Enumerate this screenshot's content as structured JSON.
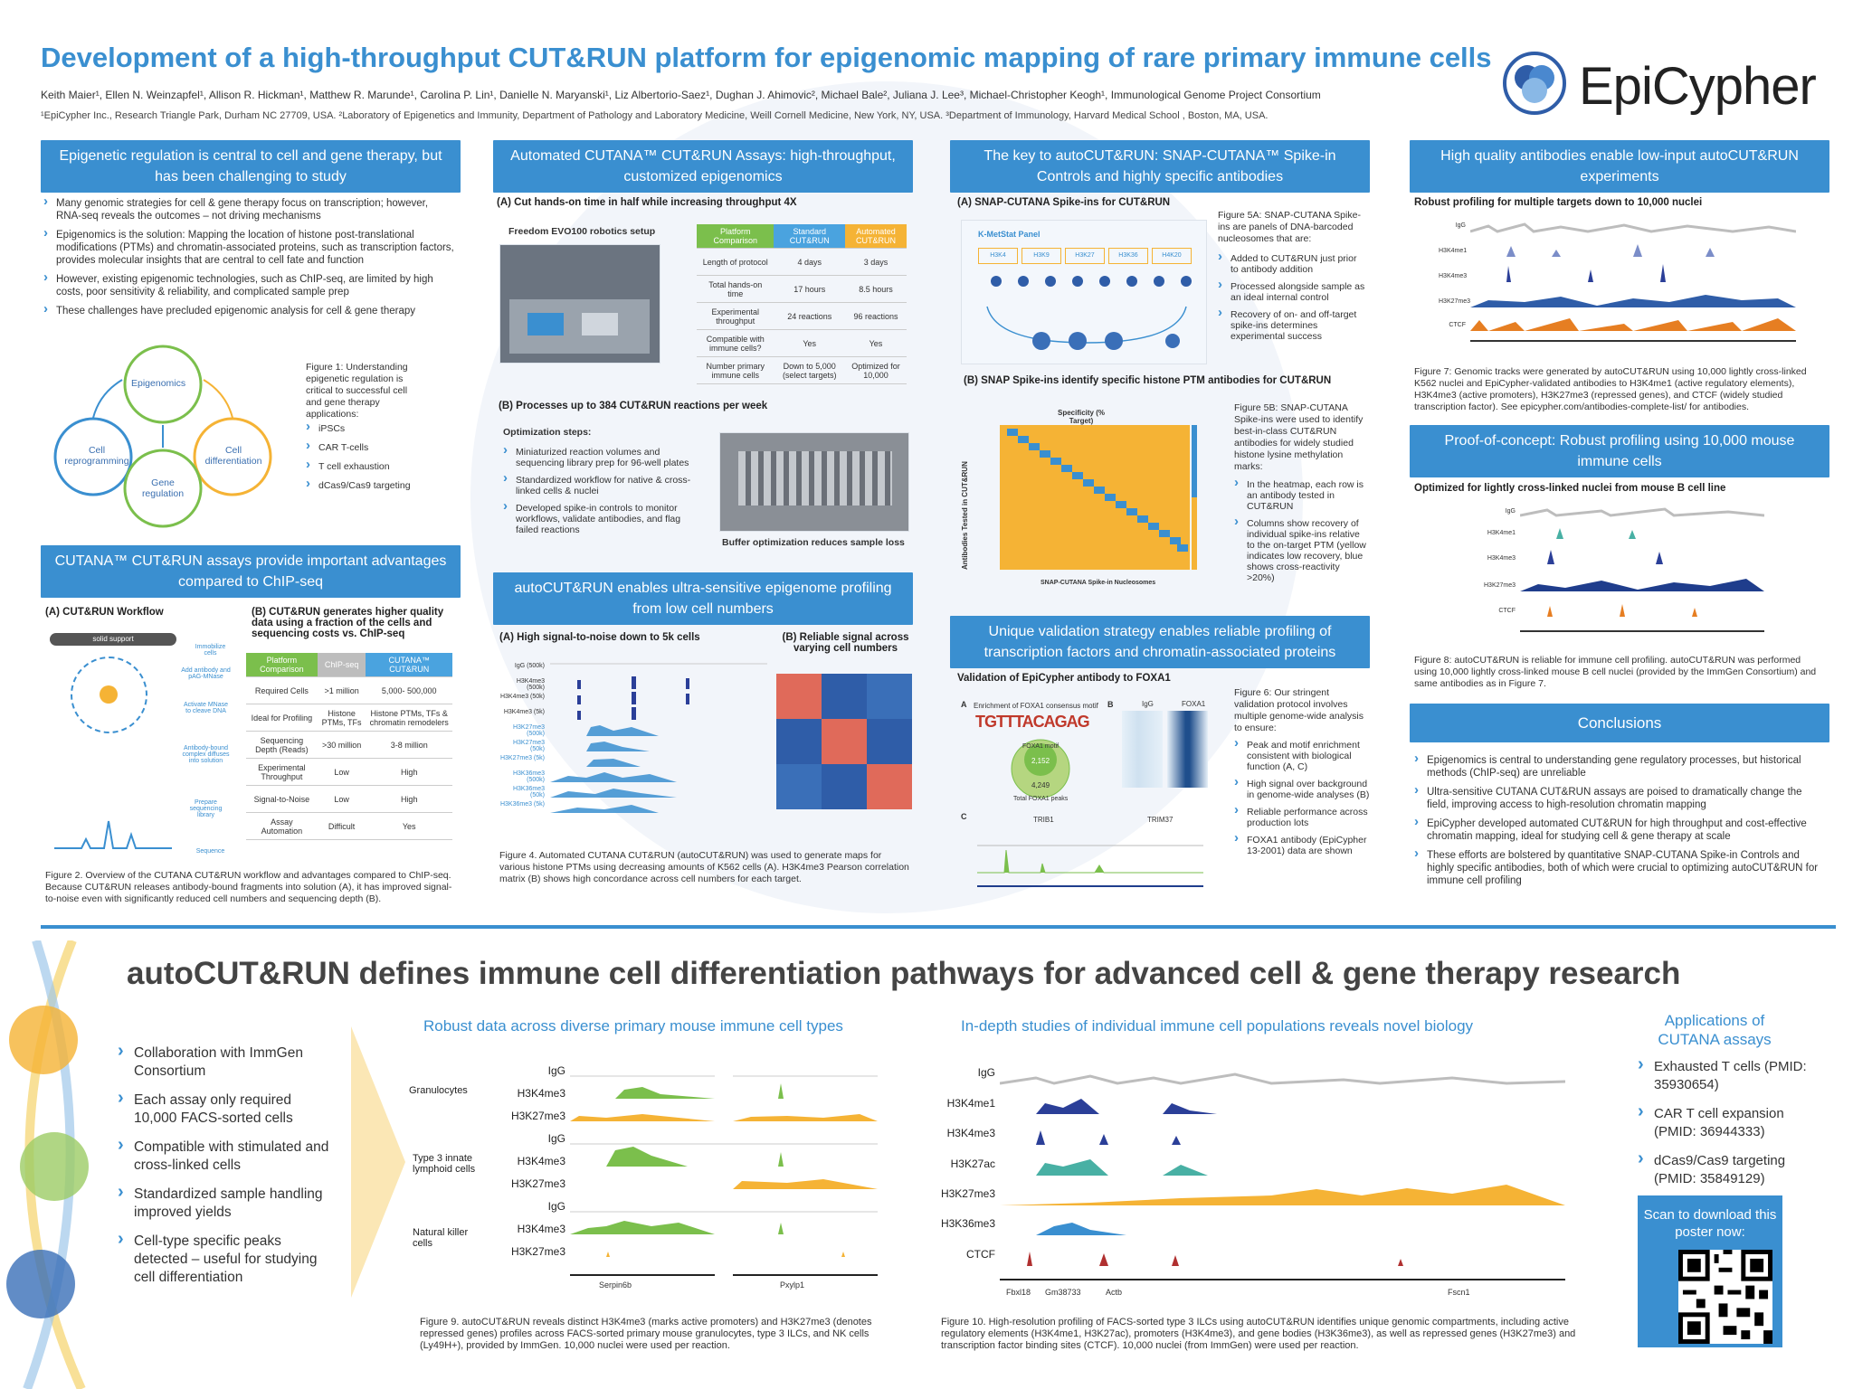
{
  "title": "Development of a high-throughput CUT&RUN platform for epigenomic mapping of rare primary immune cells",
  "authors": "Keith Maier¹, Ellen N. Weinzapfel¹, Allison R. Hickman¹, Matthew R. Marunde¹, Carolina P. Lin¹, Danielle N. Maryanski¹, Liz Albertorio-Saez¹, Dughan J. Ahimovic², Michael Bale², Juliana J. Lee³, Michael-Christopher Keogh¹, Immunological Genome Project Consortium",
  "affiliations": "¹EpiCypher Inc., Research Triangle Park, Durham NC 27709, USA.  ²Laboratory of Epigenetics and Immunity, Department of Pathology and Laboratory Medicine, Weill Cornell Medicine, New York, NY, USA. ³Department of Immunology, Harvard Medical School , Boston, MA, USA.",
  "logo": "EpiCypher",
  "col1": {
    "h1": "Epigenetic regulation is central to cell and gene therapy, but has been challenging to study",
    "bullets": [
      "Many genomic strategies for cell & gene therapy focus on transcription; however, RNA-seq reveals the outcomes – not driving mechanisms",
      "Epigenomics is the solution: Mapping the location of histone post-translational modifications (PTMs) and chromatin-associated proteins, such as transcription factors, provides molecular insights that are central to cell fate and function",
      "However, existing epigenomic technologies, such as ChIP-seq, are limited by high costs, poor sensitivity & reliability, and complicated sample prep",
      "These challenges have precluded epigenomic analysis for cell & gene therapy"
    ],
    "cycle": [
      "Epigenomics",
      "Cell reprogramming",
      "Cell differentiation",
      "Gene regulation"
    ],
    "fig1_caption": "Figure 1: Understanding epigenetic regulation is critical to successful cell and gene therapy applications:",
    "fig1_items": [
      "iPSCs",
      "CAR T-cells",
      "T cell exhaustion",
      "dCas9/Cas9 targeting"
    ],
    "h2": "CUTANA™ CUT&RUN assays provide important advantages compared to ChIP-seq",
    "subA": "(A) CUT&RUN Workflow",
    "subB": "(B) CUT&RUN generates higher quality data using a fraction of the cells and sequencing costs vs. ChIP-seq",
    "workflow": [
      "solid support",
      "Immobilize cells",
      "Add antibody and pAG-MNase",
      "Activate MNase to cleave DNA",
      "Antibody-bound complex diffuses into solution",
      "Prepare sequencing library",
      "Sequence"
    ],
    "table_head": [
      "Platform Comparison",
      "ChIP-seq",
      "CUTANA™ CUT&RUN"
    ],
    "table_rows": [
      [
        "Required Cells",
        ">1 million",
        "5,000- 500,000"
      ],
      [
        "Ideal for Profiling",
        "Histone PTMs, TFs",
        "Histone PTMs, TFs & chromatin remodelers"
      ],
      [
        "Sequencing Depth (Reads)",
        ">30 million",
        "3-8 million"
      ],
      [
        "Experimental Throughput",
        "Low",
        "High"
      ],
      [
        "Signal-to-Noise",
        "Low",
        "High"
      ],
      [
        "Assay Automation",
        "Difficult",
        "Yes"
      ]
    ],
    "fig2_caption": "Figure 2. Overview of the CUTANA CUT&RUN workflow and advantages compared to ChIP-seq. Because CUT&RUN releases antibody-bound fragments into solution (A), it has improved signal-to-noise even with significantly reduced cell numbers and sequencing depth (B)."
  },
  "col2": {
    "h1": "Automated CUTANA™ CUT&RUN Assays: high-throughput, customized epigenomics",
    "subA": "(A) Cut hands-on time in half while increasing throughput 4X",
    "robot_label": "Freedom EVO100 robotics setup",
    "table_head": [
      "Platform Comparison",
      "Standard CUT&RUN",
      "Automated CUT&RUN"
    ],
    "table_rows": [
      [
        "Length of protocol",
        "4 days",
        "3 days"
      ],
      [
        "Total hands-on time",
        "17 hours",
        "8.5 hours"
      ],
      [
        "Experimental throughput",
        "24 reactions",
        "96 reactions"
      ],
      [
        "Compatible with immune cells?",
        "Yes",
        "Yes"
      ],
      [
        "Number primary immune cells",
        "Down to 5,000 (select targets)",
        "Optimized for 10,000"
      ]
    ],
    "subB": "(B) Processes up to 384 CUT&RUN reactions per week",
    "opt_title": "Optimization steps:",
    "opt_items": [
      "Miniaturized reaction volumes and sequencing library prep for 96-well plates",
      "Standardized workflow for native & cross-linked cells & nuclei",
      "Developed spike-in controls to monitor workflows, validate antibodies, and flag failed reactions"
    ],
    "plate_label": "Buffer optimization reduces sample loss",
    "h2": "autoCUT&RUN enables ultra-sensitive epigenome profiling from low cell numbers",
    "sub2A": "(A) High signal-to-noise down to 5k cells",
    "sub2B": "(B) Reliable signal across varying cell numbers",
    "tracks": [
      "IgG (500k)",
      "H3K4me3 (500k)",
      "H3K4me3 (50k)",
      "H3K4me3 (5k)",
      "H3K27me3 (500k)",
      "H3K27me3 (50k)",
      "H3K27me3 (5k)",
      "H3K36me3 (500k)",
      "H3K36me3 (50k)",
      "H3K36me3 (5k)"
    ],
    "fig4_caption": "Figure 4. Automated CUTANA CUT&RUN (autoCUT&RUN) was used to generate maps for various histone PTMs using decreasing amounts of K562 cells (A). H3K4me3 Pearson correlation matrix (B) shows high concordance across cell numbers for each target."
  },
  "col3": {
    "h1": "The key to autoCUT&RUN: SNAP-CUTANA™ Spike-in Controls and highly specific antibodies",
    "subA": "(A) SNAP-CUTANA Spike-ins for CUT&RUN",
    "panel_title": "K-MetStat Panel",
    "panel": [
      "H3K4",
      "H3K9",
      "H3K27",
      "H3K36",
      "H4K20"
    ],
    "fig5a_caption": "Figure 5A: SNAP-CUTANA Spike-ins are panels of DNA-barcoded nucleosomes that are:",
    "fig5a_items": [
      "Added to CUT&RUN just prior to antibody addition",
      "Processed alongside sample as an ideal internal control",
      "Recovery of on- and off-target spike-ins determines experimental success"
    ],
    "subB": "(B) SNAP Spike-ins identify specific histone PTM antibodies for CUT&RUN",
    "heat_title": "Specificity (% Target)",
    "heat_xlabel": "SNAP-CUTANA Spike-in Nucleosomes",
    "heat_ylabel": "Antibodies Tested in CUT&RUN",
    "fig5b_caption": "Figure 5B: SNAP-CUTANA Spike-ins were used to identify best-in-class CUT&RUN antibodies for widely studied histone lysine methylation marks:",
    "fig5b_items": [
      "In the heatmap, each row is an antibody tested in CUT&RUN",
      "Columns show recovery of individual spike-ins relative to the on-target PTM (yellow indicates low recovery, blue shows cross-reactivity >20%)"
    ],
    "h2": "Unique validation strategy enables reliable profiling of transcription factors and chromatin-associated proteins",
    "sub2": "Validation of EpiCypher antibody to FOXA1",
    "motif_title": "Enrichment of FOXA1 consensus motif",
    "venn": [
      "FOXA1 motif",
      "2,152",
      "4,249",
      "Total FOXA1 peaks"
    ],
    "heat_labels": [
      "IgG",
      "FOXA1"
    ],
    "genes": [
      "TRIB1",
      "TRIM37"
    ],
    "fig6_caption": "Figure 6: Our stringent validation protocol involves multiple genome-wide analysis to ensure:",
    "fig6_items": [
      "Peak and motif enrichment consistent with biological function (A, C)",
      "High signal over background in genome-wide analyses (B)",
      "Reliable performance across production lots",
      "FOXA1 antibody (EpiCypher 13-2001) data are shown"
    ]
  },
  "col4": {
    "h1": "High quality antibodies enable low-input autoCUT&RUN experiments",
    "sub1": "Robust profiling for multiple targets down to 10,000 nuclei",
    "tracks": [
      "IgG",
      "H3K4me1",
      "H3K4me3",
      "H3K27me3",
      "CTCF"
    ],
    "fig7_caption": "Figure 7: Genomic tracks were generated by autoCUT&RUN using 10,000 lightly cross-linked K562 nuclei and EpiCypher-validated antibodies to H3K4me1 (active regulatory elements), H3K4me3 (active promoters), H3K27me3 (repressed genes), and CTCF (widely studied transcription factor). See epicypher.com/antibodies-complete-list/ for antibodies.",
    "h2": "Proof-of-concept: Robust profiling using 10,000 mouse immune cells",
    "sub2": "Optimized for lightly cross-linked nuclei from mouse B cell line",
    "fig8_caption": "Figure 8: autoCUT&RUN is reliable for immune cell profiling. autoCUT&RUN was performed using 10,000 lightly cross-linked mouse B cell nuclei (provided by the ImmGen Consortium) and same antibodies as in Figure 7.",
    "h3": "Conclusions",
    "conclusions": [
      "Epigenomics is central to understanding gene regulatory processes, but historical methods (ChIP-seq) are unreliable",
      "Ultra-sensitive CUTANA CUT&RUN assays are poised to dramatically change the field, improving access to high-resolution chromatin mapping",
      "EpiCypher developed automated CUT&RUN for high throughput and cost-effective chromatin mapping, ideal for studying cell & gene therapy at scale",
      "These efforts are bolstered by quantitative SNAP-CUTANA Spike-in Controls and highly specific antibodies, both of which were crucial to optimizing autoCUT&RUN for immune cell profiling"
    ]
  },
  "bottom": {
    "title": "autoCUT&RUN defines immune cell differentiation pathways for advanced cell & gene therapy research",
    "bullets": [
      "Collaboration with ImmGen Consortium",
      "Each assay only required 10,000 FACS-sorted cells",
      "Compatible with stimulated and cross-linked cells",
      "Standardized sample handling improved yields",
      "Cell-type specific peaks detected – useful for studying cell differentiation"
    ],
    "sub9": "Robust data across diverse primary mouse immune cell types",
    "cell_types": [
      "Granulocytes",
      "Type 3 innate lymphoid cells",
      "Natural killer cells"
    ],
    "marks9": [
      "IgG",
      "H3K4me3",
      "H3K27me3"
    ],
    "genes9": [
      "Serpin6b",
      "Pxylp1"
    ],
    "fig9_caption": "Figure 9. autoCUT&RUN reveals distinct H3K4me3 (marks active promoters) and H3K27me3 (denotes repressed genes) profiles across FACS-sorted primary mouse granulocytes, type 3 ILCs, and NK cells (Ly49H+), provided by ImmGen. 10,000 nuclei were used per reaction.",
    "sub10": "In-depth studies of individual immune cell populations reveals novel biology",
    "marks10": [
      "IgG",
      "H3K4me1",
      "H3K4me3",
      "H3K27ac",
      "H3K27me3",
      "H3K36me3",
      "CTCF"
    ],
    "genes10": [
      "Fbxl18",
      "Gm38733",
      "Actb",
      "Fscn1"
    ],
    "fig10_caption": "Figure 10. High-resolution profiling of FACS-sorted type 3 ILCs using autoCUT&RUN identifies unique genomic compartments, including active regulatory elements (H3K4me1, H3K27ac), promoters (H3K4me3), and gene bodies (H3K36me3), as well as repressed genes (H3K27me3) and transcription factor binding sites (CTCF). 10,000 nuclei (from ImmGen) were used per reaction.",
    "apps_title": "Applications of CUTANA assays",
    "apps": [
      "Exhausted T cells (PMID: 35930654)",
      "CAR T cell expansion (PMID: 36944333)",
      "dCas9/Cas9 targeting (PMID: 35849129)"
    ],
    "qr_text": "Scan to download this poster now:"
  },
  "colors": {
    "accent": "#3a8fd0",
    "green": "#7bbf4c",
    "orange": "#f5b335",
    "navy": "#1f3d8c"
  }
}
